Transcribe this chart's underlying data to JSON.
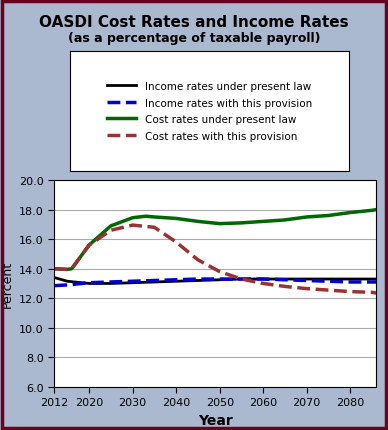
{
  "title": "OASDI Cost Rates and Income Rates",
  "subtitle": "(as a percentage of taxable payroll)",
  "xlabel": "Year",
  "ylabel": "Percent",
  "xlim": [
    2012,
    2086
  ],
  "ylim": [
    6.0,
    20.0
  ],
  "yticks": [
    6.0,
    8.0,
    10.0,
    12.0,
    14.0,
    16.0,
    18.0,
    20.0
  ],
  "xticks": [
    2012,
    2020,
    2030,
    2040,
    2050,
    2060,
    2070,
    2080
  ],
  "background_color": "#aab8d0",
  "plot_bg_color": "#ffffff",
  "border_color": "#6a0020",
  "income_present_law": {
    "x": [
      2012,
      2015,
      2020,
      2025,
      2030,
      2035,
      2040,
      2045,
      2050,
      2055,
      2060,
      2065,
      2070,
      2075,
      2080,
      2085,
      2086
    ],
    "y": [
      13.4,
      13.15,
      13.0,
      13.0,
      13.05,
      13.1,
      13.15,
      13.2,
      13.25,
      13.3,
      13.3,
      13.3,
      13.3,
      13.3,
      13.3,
      13.3,
      13.3
    ],
    "color": "#000000",
    "linestyle": "-",
    "linewidth": 2.0,
    "label": "Income rates under present law"
  },
  "income_provision": {
    "x": [
      2012,
      2015,
      2020,
      2025,
      2030,
      2035,
      2040,
      2045,
      2050,
      2055,
      2060,
      2065,
      2070,
      2075,
      2080,
      2085,
      2086
    ],
    "y": [
      12.85,
      12.9,
      13.05,
      13.1,
      13.15,
      13.2,
      13.25,
      13.3,
      13.3,
      13.3,
      13.3,
      13.25,
      13.2,
      13.15,
      13.1,
      13.1,
      13.1
    ],
    "color": "#0000cc",
    "linestyle": "--",
    "linewidth": 2.5,
    "label": "Income rates with this provision"
  },
  "cost_present_law": {
    "x": [
      2012,
      2015,
      2016,
      2020,
      2025,
      2030,
      2033,
      2035,
      2040,
      2045,
      2050,
      2055,
      2060,
      2065,
      2070,
      2075,
      2080,
      2085,
      2086
    ],
    "y": [
      14.0,
      13.95,
      14.0,
      15.6,
      16.9,
      17.45,
      17.55,
      17.5,
      17.4,
      17.2,
      17.05,
      17.1,
      17.2,
      17.3,
      17.5,
      17.6,
      17.8,
      17.95,
      18.0
    ],
    "color": "#006600",
    "linestyle": "-",
    "linewidth": 2.5,
    "label": "Cost rates under present law"
  },
  "cost_provision": {
    "x": [
      2012,
      2015,
      2016,
      2020,
      2025,
      2030,
      2035,
      2040,
      2045,
      2050,
      2055,
      2060,
      2065,
      2070,
      2075,
      2080,
      2085,
      2086
    ],
    "y": [
      14.0,
      13.95,
      14.0,
      15.6,
      16.6,
      16.95,
      16.8,
      15.8,
      14.6,
      13.8,
      13.3,
      13.0,
      12.8,
      12.65,
      12.55,
      12.45,
      12.4,
      12.35
    ],
    "color": "#993333",
    "linestyle": "--",
    "linewidth": 2.5,
    "label": "Cost rates with this provision"
  }
}
